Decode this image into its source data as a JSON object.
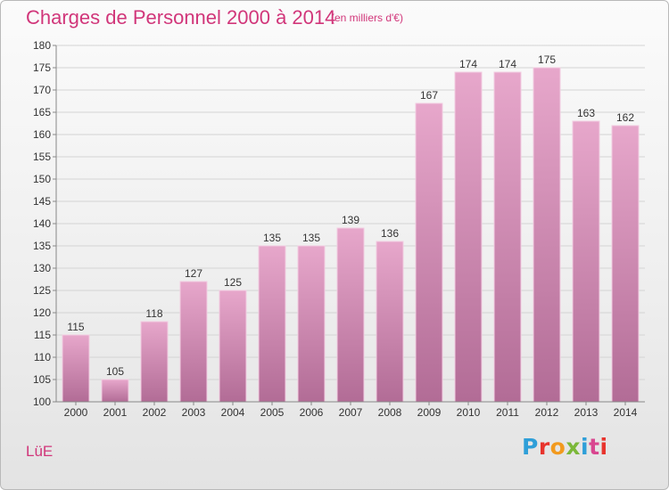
{
  "header": {
    "title": "Charges de Personnel 2000 à 2014",
    "subtitle": "(en milliers d'€)"
  },
  "footer": {
    "commune": "LüE",
    "logo_text": "Proxiti",
    "logo_colors": [
      "#2f9fd8",
      "#e8342d",
      "#f29a1e",
      "#7cb83a",
      "#2f9fd8",
      "#d94690",
      "#e8342d"
    ]
  },
  "chart_data": {
    "type": "bar",
    "categories": [
      "2000",
      "2001",
      "2002",
      "2003",
      "2004",
      "2005",
      "2006",
      "2007",
      "2008",
      "2009",
      "2010",
      "2011",
      "2012",
      "2013",
      "2014"
    ],
    "values": [
      115,
      105,
      118,
      127,
      125,
      135,
      135,
      139,
      136,
      167,
      174,
      174,
      175,
      163,
      162
    ],
    "title": "Charges de Personnel 2000 à 2014",
    "ylim": [
      100,
      180
    ],
    "yticks": [
      100,
      105,
      110,
      115,
      120,
      125,
      130,
      135,
      140,
      145,
      150,
      155,
      160,
      165,
      170,
      175,
      180
    ],
    "grid": true,
    "bar_color_top": "#e7a7cb",
    "bar_color_bottom": "#b26c96",
    "title_color": "#d1367a"
  }
}
